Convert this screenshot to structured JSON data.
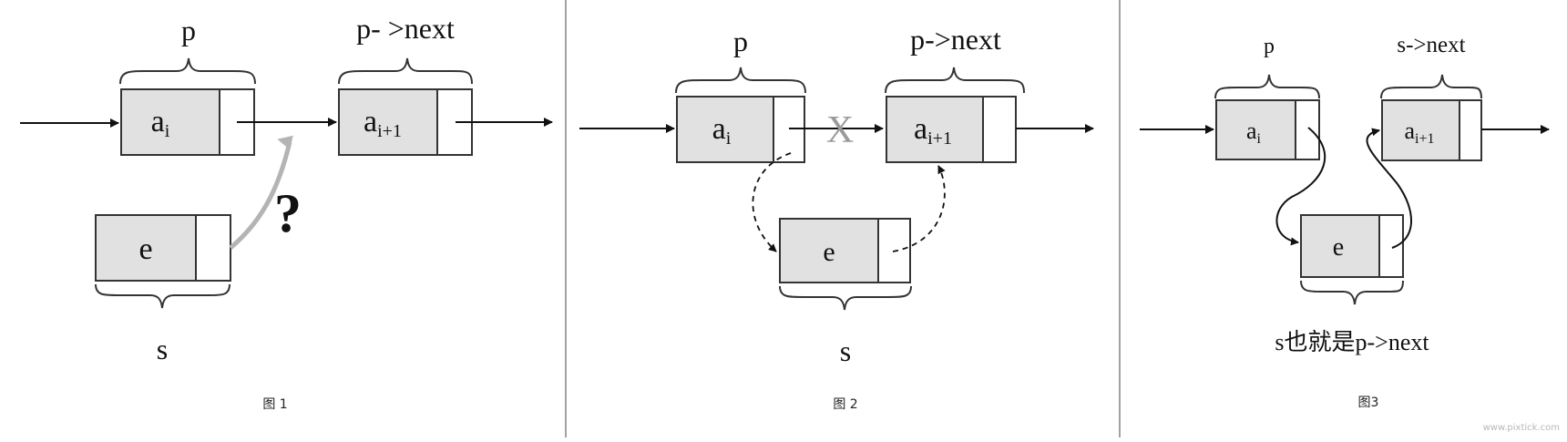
{
  "figures": [
    {
      "caption": "图 1",
      "p_label": "p",
      "next_label": "p- >next",
      "node_ai": {
        "base": "a",
        "sub": "i"
      },
      "node_ai1": {
        "base": "a",
        "sub": "i+1"
      },
      "node_e": "e",
      "s_label": "s",
      "question": "?"
    },
    {
      "caption": "图 2",
      "p_label": "p",
      "next_label": "p->next",
      "node_ai": {
        "base": "a",
        "sub": "i"
      },
      "node_ai1": {
        "base": "a",
        "sub": "i+1"
      },
      "node_e": "e",
      "s_label": "s",
      "cut_mark": "X"
    },
    {
      "caption": "图3",
      "p_label": "p",
      "next_label": "s->next",
      "node_ai": {
        "base": "a",
        "sub": "i"
      },
      "node_ai1": {
        "base": "a",
        "sub": "i+1"
      },
      "node_e": "e",
      "s_label": "s也就是p->next"
    }
  ],
  "watermark": "www.pixtick.com",
  "colors": {
    "node_fill": "#e1e1e1",
    "border": "#333333",
    "question_arrow": "#b4b4b4",
    "cut_mark": "#9a9a9a"
  }
}
